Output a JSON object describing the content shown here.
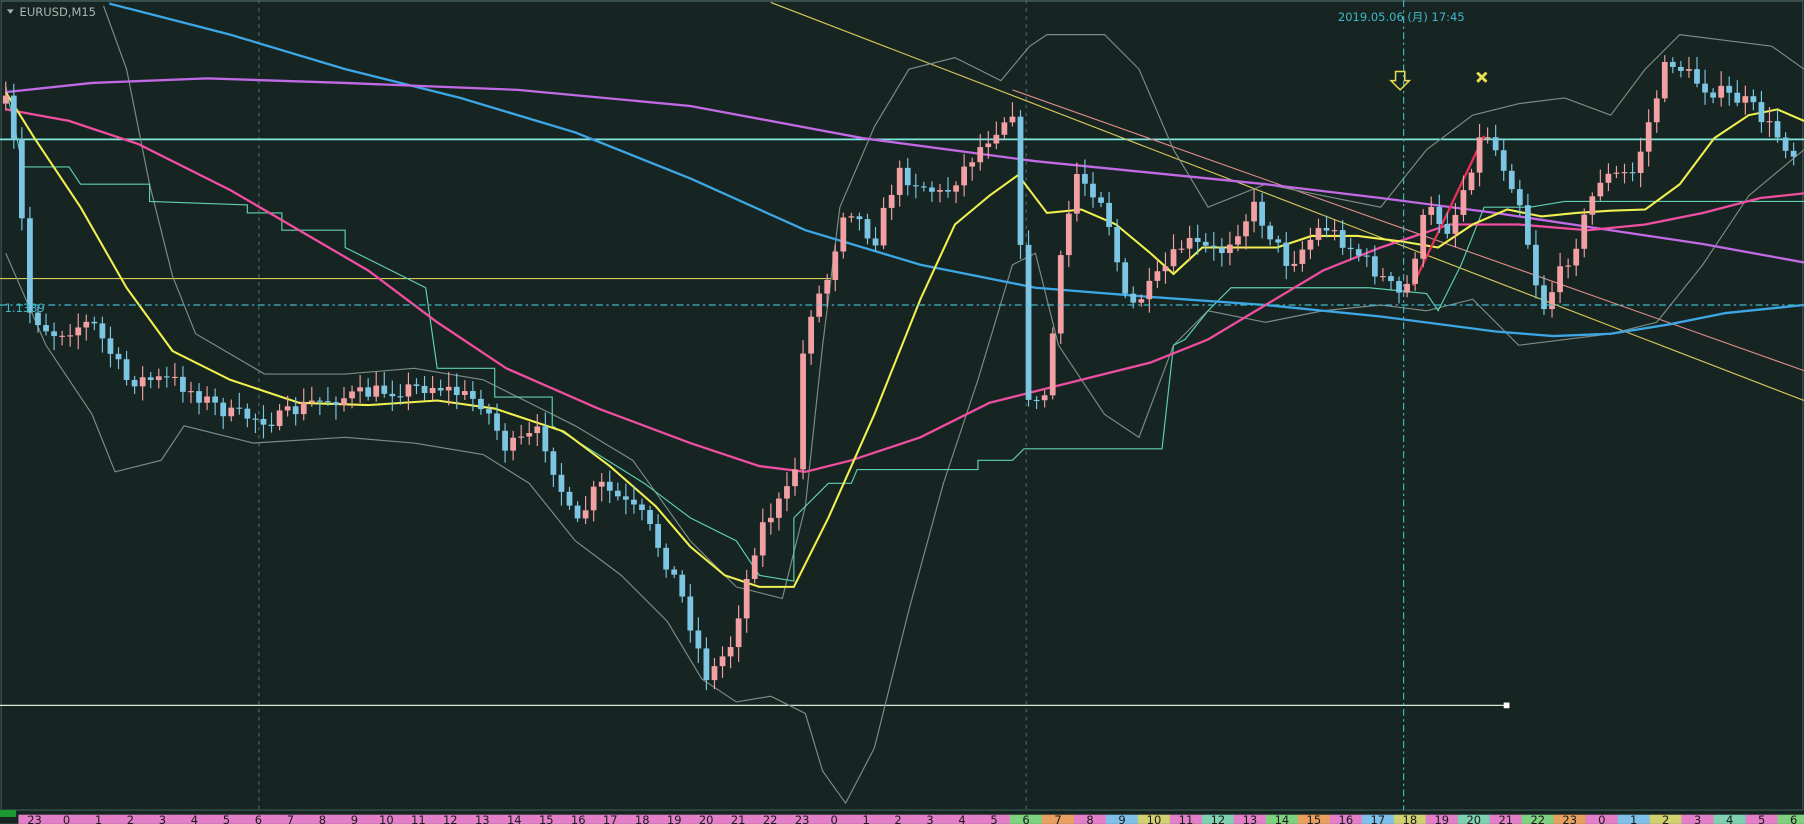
{
  "header": {
    "symbol": "EURUSD,M15"
  },
  "cursor": {
    "time": "2019.05.06 (月) 17:45",
    "price": "1.1339"
  },
  "timeline": {
    "hours": [
      "23",
      "0",
      "1",
      "2",
      "3",
      "4",
      "5",
      "6",
      "7",
      "8",
      "9",
      "10",
      "11",
      "12",
      "13",
      "14",
      "15",
      "16",
      "17",
      "18",
      "19",
      "20",
      "21",
      "22",
      "23",
      "0",
      "1",
      "2",
      "3",
      "4",
      "5",
      "6",
      "7",
      "8",
      "9",
      "10",
      "11",
      "12",
      "13",
      "14",
      "15",
      "16",
      "17",
      "18",
      "19",
      "20",
      "21",
      "22",
      "23",
      "0",
      "1",
      "2",
      "3",
      "4",
      "5",
      "6"
    ]
  }
}
